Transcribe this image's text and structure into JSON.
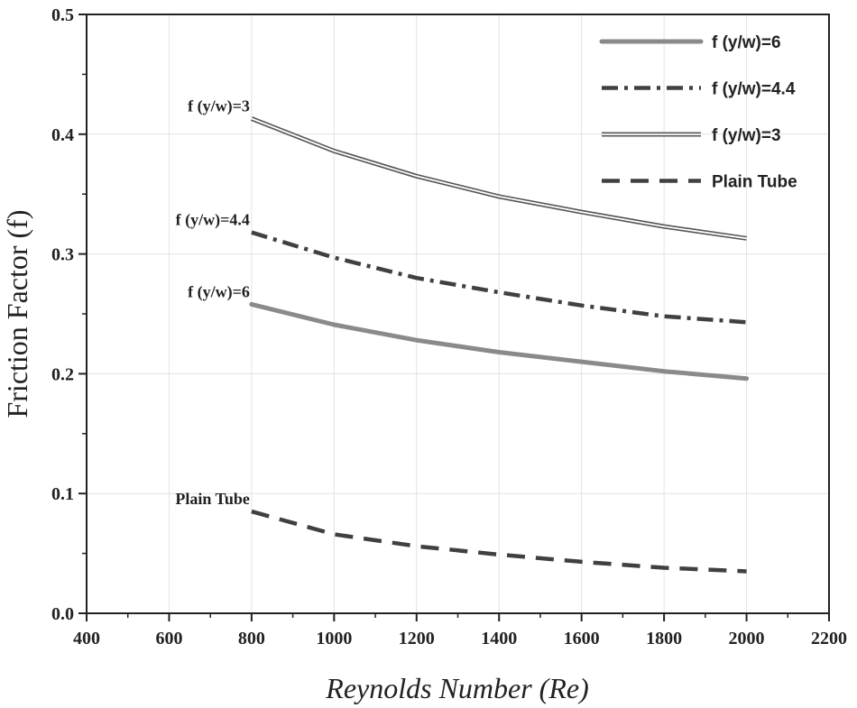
{
  "chart_data": {
    "type": "line",
    "title": "",
    "xlabel": "Reynolds Number (Re)",
    "ylabel": "Friction Factor (f)",
    "xlim": [
      400,
      2200
    ],
    "ylim": [
      0.0,
      0.5
    ],
    "x_ticks": [
      "400",
      "600",
      "800",
      "1000",
      "1200",
      "1400",
      "1600",
      "1800",
      "2000",
      "2200"
    ],
    "y_ticks": [
      "0.0",
      "0.1",
      "0.2",
      "0.3",
      "0.4",
      "0.5"
    ],
    "grid": true,
    "legend_position": "top-right",
    "x": [
      800,
      1000,
      1200,
      1400,
      1600,
      1800,
      2000
    ],
    "series": [
      {
        "name": "f (y/w)=6",
        "label": "f (y/w)=6",
        "style": "thick-solid",
        "color": "#8a8a8a",
        "values": [
          0.258,
          0.241,
          0.228,
          0.218,
          0.21,
          0.202,
          0.196
        ]
      },
      {
        "name": "f (y/w)=4.4",
        "label": "f (y/w)=4.4",
        "style": "dash-dot",
        "color": "#404040",
        "values": [
          0.318,
          0.297,
          0.28,
          0.268,
          0.257,
          0.248,
          0.243
        ]
      },
      {
        "name": "f (y/w)=3",
        "label": "f (y/w)=3",
        "style": "double-line",
        "color": "#555555",
        "values": [
          0.413,
          0.386,
          0.365,
          0.348,
          0.335,
          0.323,
          0.313
        ]
      },
      {
        "name": "Plain Tube",
        "label": "Plain Tube",
        "style": "dashed",
        "color": "#404040",
        "values": [
          0.085,
          0.066,
          0.056,
          0.049,
          0.043,
          0.038,
          0.035
        ]
      }
    ]
  }
}
